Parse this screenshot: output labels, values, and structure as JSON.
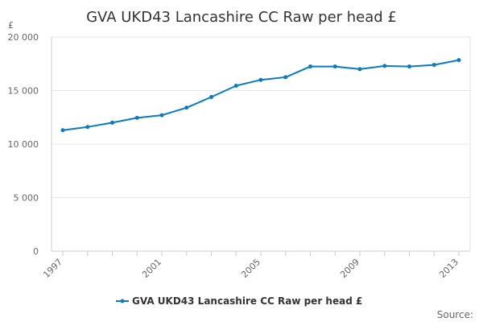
{
  "chart_data": {
    "type": "line",
    "title": "GVA UKD43 Lancashire CC Raw per head £",
    "yunit": "£",
    "source_label": "Source:",
    "ylim": [
      0,
      20000
    ],
    "yticks": [
      0,
      5000,
      10000,
      15000,
      20000
    ],
    "ytick_labels": [
      "0",
      "5 000",
      "10 000",
      "15 000",
      "20 000"
    ],
    "xticks": [
      1997,
      2001,
      2005,
      2009,
      2013
    ],
    "xtick_labels": [
      "1997",
      "2001",
      "2005",
      "2009",
      "2013"
    ],
    "grid": true,
    "legend_position": "bottom",
    "series": [
      {
        "name": "GVA UKD43 Lancashire CC Raw per head £",
        "color": "#0c7bbd",
        "x": [
          1997,
          1998,
          1999,
          2000,
          2001,
          2002,
          2003,
          2004,
          2005,
          2006,
          2007,
          2008,
          2009,
          2010,
          2011,
          2012,
          2013
        ],
        "values": [
          11300,
          11600,
          12000,
          12450,
          12700,
          13400,
          14400,
          15450,
          16000,
          16250,
          17250,
          17250,
          17000,
          17300,
          17250,
          17400,
          17850
        ]
      }
    ]
  }
}
